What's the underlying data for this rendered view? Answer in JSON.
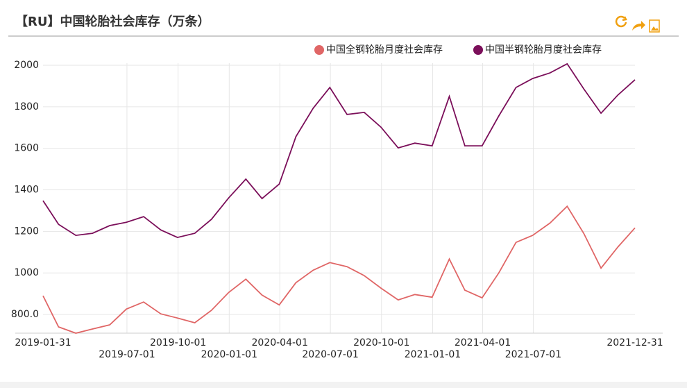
{
  "chart_data": {
    "type": "line",
    "title": "【RU】中国轮胎社会库存（万条）",
    "x": [
      "2019-01-31",
      "2019-02-28",
      "2019-03-31",
      "2019-04-30",
      "2019-05-31",
      "2019-06-30",
      "2019-07-31",
      "2019-08-31",
      "2019-09-30",
      "2019-10-31",
      "2019-11-30",
      "2019-12-31",
      "2020-01-31",
      "2020-02-29",
      "2020-03-31",
      "2020-04-30",
      "2020-05-31",
      "2020-06-30",
      "2020-07-31",
      "2020-08-31",
      "2020-09-30",
      "2020-10-31",
      "2020-11-30",
      "2020-12-31",
      "2021-01-31",
      "2021-02-28",
      "2021-03-31",
      "2021-04-30",
      "2021-05-31",
      "2021-06-30",
      "2021-07-31",
      "2021-08-31",
      "2021-09-30",
      "2021-10-31",
      "2021-11-30",
      "2021-12-31"
    ],
    "series": [
      {
        "name": "中国全钢轮胎月度社会库存",
        "color": "#e06666",
        "values": [
          890,
          740,
          710,
          730,
          750,
          826,
          860,
          803,
          783,
          760,
          820,
          906,
          970,
          893,
          846,
          953,
          1013,
          1050,
          1030,
          987,
          927,
          870,
          896,
          883,
          1067,
          917,
          880,
          1000,
          1147,
          1181,
          1240,
          1321,
          1190,
          1023,
          1124,
          1217
        ]
      },
      {
        "name": "中国半钢轮胎月度社会库存",
        "color": "#7b0f5a",
        "values": [
          1348,
          1234,
          1181,
          1191,
          1228,
          1244,
          1271,
          1207,
          1171,
          1191,
          1258,
          1361,
          1452,
          1358,
          1428,
          1656,
          1793,
          1893,
          1763,
          1773,
          1702,
          1602,
          1625,
          1612,
          1850,
          1612,
          1612,
          1756,
          1893,
          1936,
          1963,
          2007,
          1886,
          1769,
          1856,
          1930
        ]
      }
    ],
    "xticks": [
      "2019-01-31",
      "2019-07-01",
      "2019-10-01",
      "2020-01-01",
      "2020-04-01",
      "2020-07-01",
      "2020-10-01",
      "2021-01-01",
      "2021-04-01",
      "2021-07-01",
      "2021-12-31"
    ],
    "ylim": [
      710,
      2010
    ],
    "yticks": [
      {
        "value": 800,
        "label": "800.0"
      },
      1000,
      1200,
      1400,
      1600,
      1800,
      2000
    ],
    "grid": true
  }
}
